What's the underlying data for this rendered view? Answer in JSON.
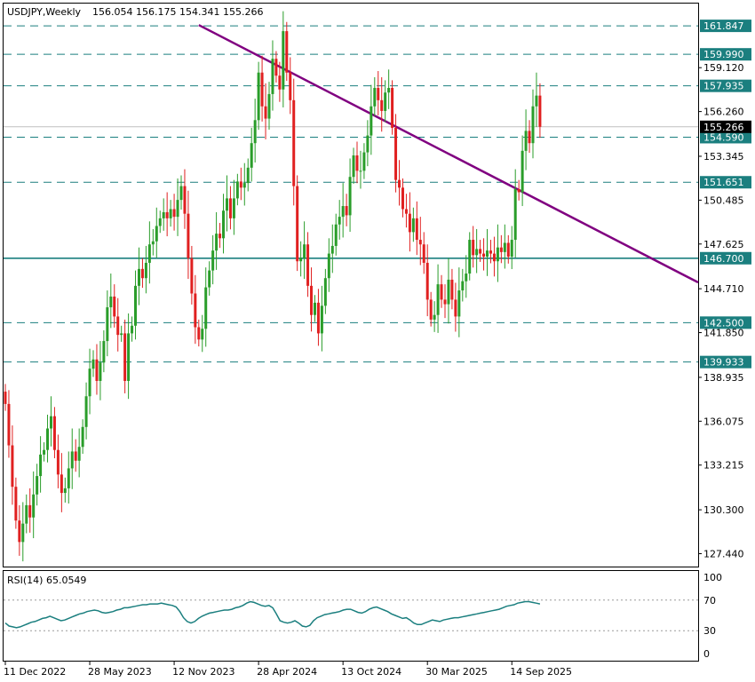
{
  "header": {
    "symbol_timeframe": "USDJPY,Weekly",
    "ohlc": "156.054 156.175 154.341 155.266"
  },
  "rsi_panel": {
    "label": "RSI(14) 65.0549",
    "levels": [
      100,
      70,
      30,
      0
    ]
  },
  "colors": {
    "bull": "#2a9d2a",
    "bear": "#e02020",
    "level_line": "#1b7f7f",
    "trendline": "#800080",
    "rsi_line": "#1b7f7f",
    "price_box": "#000000"
  },
  "chart_data": {
    "type": "candlestick",
    "symbol": "USDJPY",
    "timeframe": "Weekly",
    "ohlc_last": {
      "open": 156.054,
      "high": 156.175,
      "low": 154.341,
      "close": 155.266
    },
    "y_axis_ticks": [
      159.12,
      156.26,
      153.345,
      150.485,
      147.625,
      144.71,
      141.85,
      138.935,
      136.075,
      133.215,
      130.3,
      127.44
    ],
    "ylim": [
      126.6,
      163.3
    ],
    "x_axis_labels": [
      "11 Dec 2022",
      "28 May 2023",
      "12 Nov 2023",
      "28 Apr 2024",
      "13 Oct 2024",
      "30 Mar 2025",
      "14 Sep 2025"
    ],
    "current_price": 155.266,
    "levels": [
      {
        "value": 161.847,
        "style": "dashed",
        "label": "161.847"
      },
      {
        "value": 159.99,
        "style": "dashed",
        "label": "159.990"
      },
      {
        "value": 157.935,
        "style": "dashed",
        "label": "157.935"
      },
      {
        "value": 154.59,
        "style": "dashed",
        "label": "154.590"
      },
      {
        "value": 151.651,
        "style": "dashed",
        "label": "151.651"
      },
      {
        "value": 146.7,
        "style": "solid",
        "label": "146.700"
      },
      {
        "value": 142.5,
        "style": "dashed",
        "label": "142.500"
      },
      {
        "value": 139.933,
        "style": "dashed",
        "label": "139.933"
      }
    ],
    "trendline": {
      "from": {
        "week": 55,
        "price": 161.9
      },
      "to": {
        "week": 165,
        "price": 148.9
      }
    },
    "closes": [
      137.2,
      134.5,
      131.8,
      129.6,
      128.2,
      129.4,
      130.6,
      129.8,
      131.3,
      132.5,
      133.9,
      134.2,
      135.6,
      136.4,
      134.2,
      132.6,
      131.4,
      131.7,
      133.0,
      134.1,
      133.5,
      134.4,
      135.7,
      137.7,
      139.5,
      140.1,
      138.7,
      139.9,
      141.3,
      143.5,
      144.2,
      142.9,
      141.7,
      141.8,
      138.7,
      141.8,
      142.3,
      144.9,
      146.0,
      145.4,
      146.4,
      147.6,
      147.8,
      148.8,
      149.3,
      149.7,
      149.3,
      149.9,
      149.4,
      150.5,
      151.4,
      149.6,
      146.7,
      144.4,
      142.2,
      141.4,
      142.1,
      144.8,
      145.9,
      147.2,
      148.3,
      148.0,
      149.8,
      150.6,
      149.3,
      150.6,
      151.7,
      151.3,
      151.6,
      152.6,
      154.2,
      155.7,
      158.8,
      156.6,
      155.8,
      157.4,
      159.7,
      158.6,
      157.7,
      161.5,
      158.8,
      157.0,
      151.4,
      146.5,
      146.7,
      147.6,
      144.9,
      143.0,
      143.8,
      141.8,
      143.6,
      145.4,
      147.0,
      147.5,
      148.9,
      149.4,
      150.1,
      149.5,
      152.0,
      153.4,
      152.4,
      152.4,
      153.6,
      154.7,
      156.6,
      157.8,
      157.0,
      156.3,
      157.5,
      157.8,
      155.2,
      151.8,
      151.3,
      149.9,
      149.6,
      148.4,
      149.3,
      147.9,
      147.6,
      146.4,
      144.0,
      142.7,
      143.0,
      145.0,
      144.0,
      143.7,
      145.3,
      144.0,
      142.9,
      144.6,
      145.2,
      145.7,
      147.9,
      146.9,
      147.3,
      147.0,
      146.8,
      147.2,
      147.0,
      146.5,
      147.4,
      147.1,
      147.7,
      146.8,
      147.9,
      151.2,
      151.0,
      153.7,
      155.0,
      154.2,
      156.6,
      157.3,
      155.266
    ],
    "rsi": [
      40,
      36,
      35,
      34,
      35,
      37,
      39,
      41,
      42,
      44,
      46,
      47,
      49,
      47,
      45,
      43,
      44,
      46,
      48,
      50,
      52,
      53,
      55,
      56,
      57,
      56,
      54,
      53,
      54,
      55,
      57,
      58,
      60,
      60,
      61,
      62,
      63,
      64,
      64,
      65,
      65,
      65,
      66,
      65,
      64,
      63,
      61,
      55,
      47,
      42,
      40,
      42,
      46,
      49,
      51,
      53,
      54,
      55,
      56,
      57,
      57,
      58,
      60,
      61,
      63,
      66,
      68,
      67,
      65,
      63,
      62,
      63,
      60,
      52,
      43,
      41,
      40,
      41,
      43,
      40,
      36,
      35,
      37,
      43,
      47,
      49,
      51,
      52,
      53,
      54,
      55,
      57,
      58,
      58,
      56,
      54,
      53,
      55,
      58,
      60,
      61,
      59,
      57,
      55,
      52,
      50,
      48,
      46,
      47,
      44,
      40,
      38,
      38,
      40,
      42,
      44,
      43,
      42,
      44,
      45,
      46,
      47,
      47,
      48,
      49,
      50,
      51,
      52,
      53,
      54,
      55,
      56,
      57,
      58,
      60,
      62,
      63,
      64,
      66,
      67,
      68,
      68,
      67,
      66,
      65.05
    ]
  }
}
